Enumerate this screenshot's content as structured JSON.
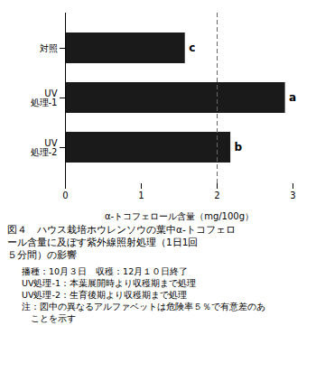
{
  "chart_data": {
    "type": "bar",
    "orientation": "horizontal",
    "categories": [
      "対照",
      "UV\n処理-1",
      "UV\n処理-2"
    ],
    "values": [
      1.58,
      2.9,
      2.18
    ],
    "color": "#1a1a1a",
    "annotations": [
      {
        "category": "対照",
        "text": "c"
      },
      {
        "category": "UV\n処理-1",
        "text": "a"
      },
      {
        "category": "UV\n処理-2",
        "text": "b"
      }
    ],
    "reference_line": {
      "x": 2.0,
      "line_style": "dashed"
    },
    "x_label": "α-トコフェロール含量（mg/100g）",
    "xlim": [
      0,
      3
    ],
    "xticks": [
      0,
      1,
      2,
      3
    ],
    "caption": [
      "図４　ハウス栽培ホウレンソウの葉中α-トコフェロ",
      "ール含量に及ぼす紫外線照射処理（1日1回",
      "５分間）の影響"
    ],
    "notes": [
      "　播種：10月３日　収穫：12月１０日終了",
      "　UV処理-1：本葉展開時より収穫期まで処理",
      "　UV処理-2：生育後期より収穫期まで処理",
      "　注：図中の異なるアルファベットは危険率５％で有意差のあ",
      "　　ことを示す"
    ]
  }
}
